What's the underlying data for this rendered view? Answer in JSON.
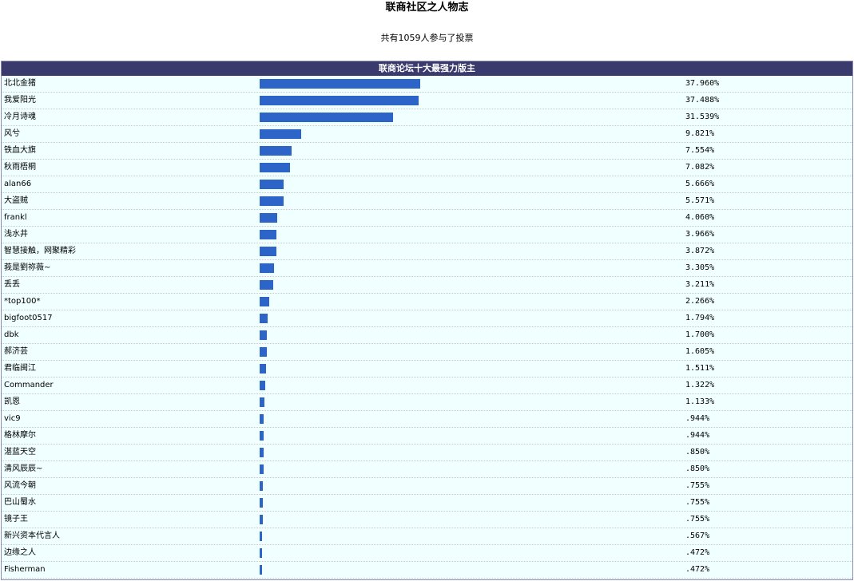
{
  "page": {
    "title": "联商社区之人物志",
    "vote_count_text": "共有1059人参与了投票"
  },
  "poll": {
    "header": "联商论坛十大最强力版主",
    "bar_color": "#2d64c8",
    "header_color": "#3a3a6c",
    "background_color": "#f0ffff",
    "max_percent_for_full_bar": 100,
    "items": [
      {
        "name": "北北金猪",
        "percent": 37.96,
        "percent_label": "37.960%"
      },
      {
        "name": "我爱阳光",
        "percent": 37.488,
        "percent_label": "37.488%"
      },
      {
        "name": "冷月诗魂",
        "percent": 31.539,
        "percent_label": "31.539%"
      },
      {
        "name": "风兮",
        "percent": 9.821,
        "percent_label": "9.821%"
      },
      {
        "name": "铁血大旗",
        "percent": 7.554,
        "percent_label": "7.554%"
      },
      {
        "name": "秋雨梧桐",
        "percent": 7.082,
        "percent_label": "7.082%"
      },
      {
        "name": "alan66",
        "percent": 5.666,
        "percent_label": "5.666%"
      },
      {
        "name": "大盗贼",
        "percent": 5.571,
        "percent_label": "5.571%"
      },
      {
        "name": "frankl",
        "percent": 4.06,
        "percent_label": "4.060%"
      },
      {
        "name": "浅水井",
        "percent": 3.966,
        "percent_label": "3.966%"
      },
      {
        "name": "智慧接触，网聚精彩",
        "percent": 3.872,
        "percent_label": "3.872%"
      },
      {
        "name": "莪是劉祢薇~",
        "percent": 3.305,
        "percent_label": "3.305%"
      },
      {
        "name": "丢丢",
        "percent": 3.211,
        "percent_label": "3.211%"
      },
      {
        "name": "*top100*",
        "percent": 2.266,
        "percent_label": "2.266%"
      },
      {
        "name": "bigfoot0517",
        "percent": 1.794,
        "percent_label": "1.794%"
      },
      {
        "name": "dbk",
        "percent": 1.7,
        "percent_label": "1.700%"
      },
      {
        "name": "郝济芸",
        "percent": 1.605,
        "percent_label": "1.605%"
      },
      {
        "name": "君临闽江",
        "percent": 1.511,
        "percent_label": "1.511%"
      },
      {
        "name": "Commander",
        "percent": 1.322,
        "percent_label": "1.322%"
      },
      {
        "name": "凯恩",
        "percent": 1.133,
        "percent_label": "1.133%"
      },
      {
        "name": "vic9",
        "percent": 0.944,
        "percent_label": ".944%"
      },
      {
        "name": "格林摩尔",
        "percent": 0.944,
        "percent_label": ".944%"
      },
      {
        "name": "湛蓝天空",
        "percent": 0.85,
        "percent_label": ".850%"
      },
      {
        "name": "清风辰辰~",
        "percent": 0.85,
        "percent_label": ".850%"
      },
      {
        "name": "风流今朝",
        "percent": 0.755,
        "percent_label": ".755%"
      },
      {
        "name": "巴山蜀水",
        "percent": 0.755,
        "percent_label": ".755%"
      },
      {
        "name": "镜子王",
        "percent": 0.755,
        "percent_label": ".755%"
      },
      {
        "name": "新兴资本代言人",
        "percent": 0.567,
        "percent_label": ".567%"
      },
      {
        "name": "边缘之人",
        "percent": 0.472,
        "percent_label": ".472%"
      },
      {
        "name": "Fisherman",
        "percent": 0.472,
        "percent_label": ".472%"
      }
    ]
  }
}
